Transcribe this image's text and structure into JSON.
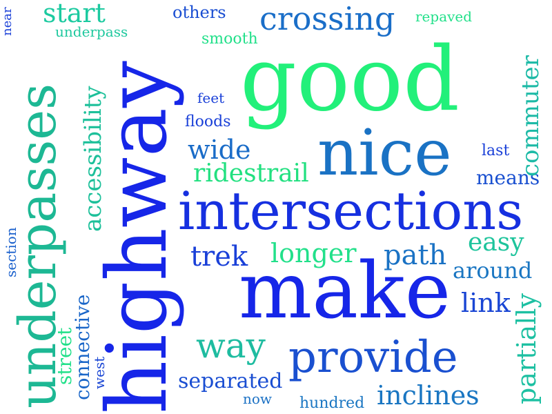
{
  "words": {
    "good": {
      "text": "good",
      "color": "#22f07a"
    },
    "highway": {
      "text": "highway",
      "color": "#1626e8"
    },
    "make": {
      "text": "make",
      "color": "#1626e8"
    },
    "intersections": {
      "text": "intersections",
      "color": "#1630e0"
    },
    "nice": {
      "text": "nice",
      "color": "#1a72c4"
    },
    "underpasses": {
      "text": "underpasses",
      "color": "#1db894"
    },
    "provide": {
      "text": "provide",
      "color": "#1a50d0"
    },
    "crossing": {
      "text": "crossing",
      "color": "#1a6ec8"
    },
    "start": {
      "text": "start",
      "color": "#1ccaa0"
    },
    "accessibility": {
      "text": "accessibility",
      "color": "#1dc09a"
    },
    "commuter": {
      "text": "commuter",
      "color": "#1cbaa6"
    },
    "ridestrail": {
      "text": "ridestrail",
      "color": "#22e080"
    },
    "wide": {
      "text": "wide",
      "color": "#1a6cc8"
    },
    "means": {
      "text": "means",
      "color": "#1a50d0"
    },
    "longer": {
      "text": "longer",
      "color": "#22e08a"
    },
    "path": {
      "text": "path",
      "color": "#1a72c4"
    },
    "easy": {
      "text": "easy",
      "color": "#1ec49c"
    },
    "trek": {
      "text": "trek",
      "color": "#1a40d8"
    },
    "around": {
      "text": "around",
      "color": "#1a76c2"
    },
    "link": {
      "text": "link",
      "color": "#1a46d4"
    },
    "way": {
      "text": "way",
      "color": "#1ebca0"
    },
    "partially": {
      "text": "partially",
      "color": "#1dc0a2"
    },
    "inclines": {
      "text": "inclines",
      "color": "#1a76c2"
    },
    "separated": {
      "text": "separated",
      "color": "#1a4ed2"
    },
    "others": {
      "text": "others",
      "color": "#1a4ed2"
    },
    "underpass": {
      "text": "underpass",
      "color": "#1ec89e"
    },
    "smooth": {
      "text": "smooth",
      "color": "#22e08a"
    },
    "repaved": {
      "text": "repaved",
      "color": "#22e08a"
    },
    "near": {
      "text": "near",
      "color": "#1a40d8"
    },
    "feet": {
      "text": "feet",
      "color": "#1a40d8"
    },
    "floods": {
      "text": "floods",
      "color": "#1a40d8"
    },
    "last": {
      "text": "last",
      "color": "#1a40d8"
    },
    "section": {
      "text": "section",
      "color": "#1a60cc"
    },
    "connective": {
      "text": "connective",
      "color": "#1a66c8"
    },
    "street": {
      "text": "street",
      "color": "#22e08a"
    },
    "west": {
      "text": "west",
      "color": "#1a46d4"
    },
    "now": {
      "text": "now",
      "color": "#1a70c4"
    },
    "hundred": {
      "text": "hundred",
      "color": "#1a76c2"
    }
  }
}
